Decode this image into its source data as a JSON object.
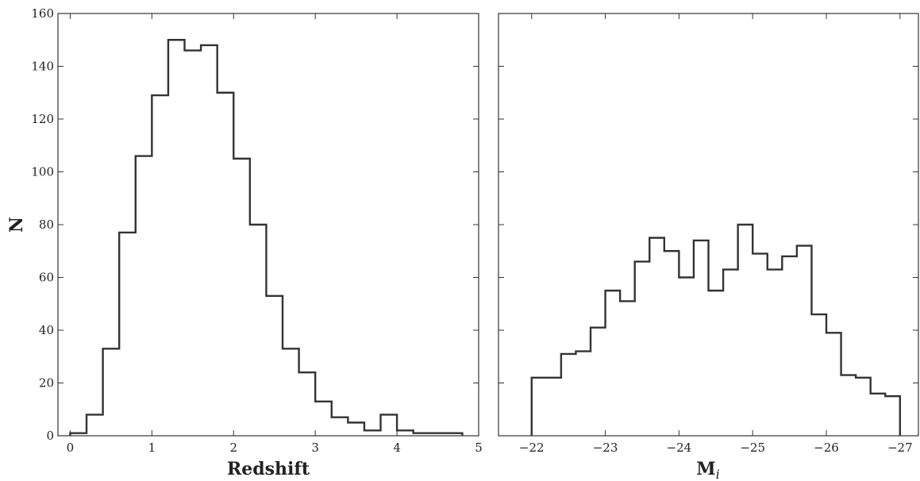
{
  "chart_data": [
    {
      "type": "histogram",
      "xlabel": "Redshift",
      "ylabel": "N",
      "xlim": [
        -0.15,
        5.0
      ],
      "ylim": [
        0,
        160
      ],
      "xticks": [
        0,
        1,
        2,
        3,
        4,
        5
      ],
      "yticks": [
        0,
        20,
        40,
        60,
        80,
        100,
        120,
        140,
        160
      ],
      "bin_edges": [
        0.0,
        0.2,
        0.4,
        0.6,
        0.8,
        1.0,
        1.2,
        1.4,
        1.6,
        1.8,
        2.0,
        2.2,
        2.4,
        2.6,
        2.8,
        3.0,
        3.2,
        3.4,
        3.6,
        3.8,
        4.0,
        4.2,
        4.4,
        4.6,
        4.8
      ],
      "counts": [
        1,
        8,
        33,
        77,
        106,
        129,
        150,
        146,
        148,
        130,
        105,
        80,
        53,
        33,
        24,
        13,
        7,
        5,
        2,
        8,
        2,
        1,
        1,
        1
      ],
      "color": "#333333"
    },
    {
      "type": "histogram",
      "xlabel_main": "M",
      "xlabel_sub": "i",
      "xlim": [
        -21.55,
        -27.25
      ],
      "ylim": [
        0,
        160
      ],
      "xticks": [
        -22,
        -23,
        -24,
        -25,
        -26,
        -27
      ],
      "xtick_labels": [
        "−22",
        "−23",
        "−24",
        "−25",
        "−26",
        "−27"
      ],
      "bin_edges": [
        -22.0,
        -22.2,
        -22.4,
        -22.6,
        -22.8,
        -23.0,
        -23.2,
        -23.4,
        -23.6,
        -23.8,
        -24.0,
        -24.2,
        -24.4,
        -24.6,
        -24.8,
        -25.0,
        -25.2,
        -25.4,
        -25.6,
        -25.8,
        -26.0,
        -26.2,
        -26.4,
        -26.6,
        -26.8,
        -27.0
      ],
      "counts": [
        22,
        22,
        31,
        32,
        41,
        55,
        51,
        66,
        75,
        70,
        60,
        74,
        55,
        63,
        80,
        69,
        63,
        68,
        72,
        46,
        39,
        23,
        22,
        16,
        15
      ],
      "color": "#333333"
    }
  ]
}
